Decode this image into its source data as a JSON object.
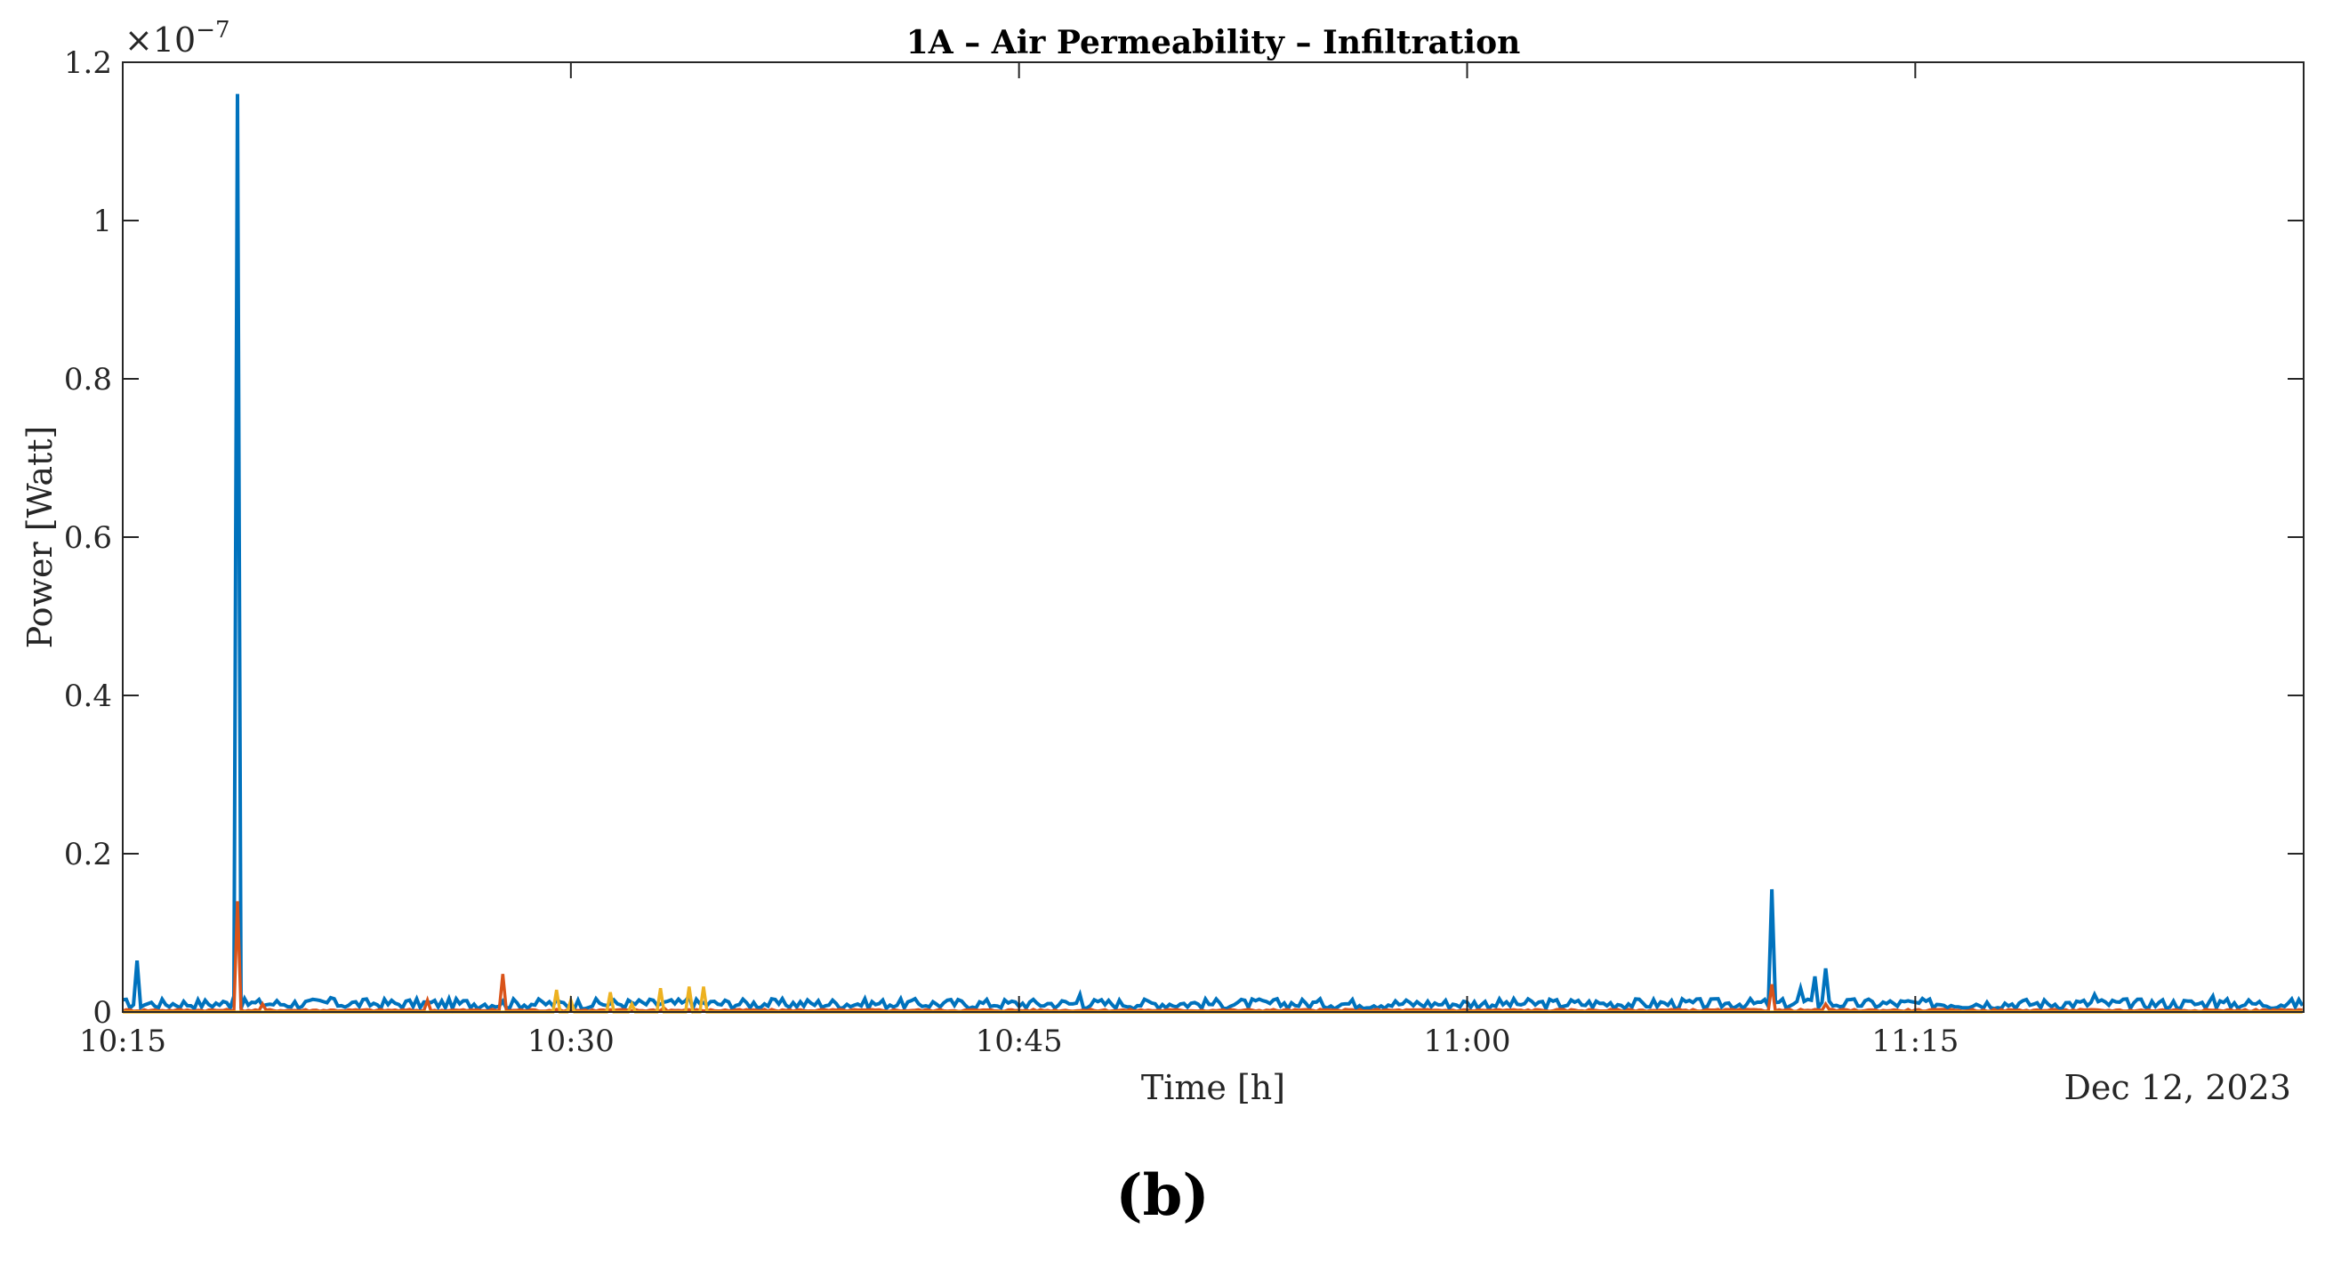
{
  "chart_data": {
    "type": "line",
    "title": "1A – Air Permeability – Infiltration",
    "xlabel": "Time [h]",
    "ylabel": "Power [Watt]",
    "y_multiplier": "×10",
    "y_exponent": "−7",
    "date_label": "Dec 12, 2023",
    "panel_label": "(b)",
    "xlim": [
      "10:15",
      "11:28"
    ],
    "ylim": [
      0,
      1.2
    ],
    "x_ticks": [
      "10:15",
      "10:30",
      "10:45",
      "11:00",
      "11:15"
    ],
    "y_ticks": [
      "0",
      "0.2",
      "0.4",
      "0.6",
      "0.8",
      "1",
      "1.2"
    ],
    "grid": false,
    "colors": [
      "#0072BD",
      "#D95319",
      "#EDB120"
    ],
    "series": [
      {
        "color": "#0072BD",
        "baseline": 0.01,
        "points": [
          {
            "x": "10:15:30",
            "y": 0.065
          },
          {
            "x": "10:18:40",
            "y": 0.02
          },
          {
            "x": "10:18:50",
            "y": 1.16
          },
          {
            "x": "10:22:00",
            "y": 0.018
          },
          {
            "x": "10:34:00",
            "y": 0.02
          },
          {
            "x": "10:47:00",
            "y": 0.022
          },
          {
            "x": "11:10:10",
            "y": 0.155
          },
          {
            "x": "11:11:10",
            "y": 0.03
          },
          {
            "x": "11:11:40",
            "y": 0.045
          },
          {
            "x": "11:12:00",
            "y": 0.055
          },
          {
            "x": "11:21:00",
            "y": 0.022
          },
          {
            "x": "11:25:00",
            "y": 0.02
          }
        ]
      },
      {
        "color": "#D95319",
        "baseline": 0.002,
        "points": [
          {
            "x": "10:18:50",
            "y": 0.14
          },
          {
            "x": "10:19:40",
            "y": 0.01
          },
          {
            "x": "10:25:15",
            "y": 0.015
          },
          {
            "x": "10:27:40",
            "y": 0.048
          },
          {
            "x": "10:33:10",
            "y": 0.005
          },
          {
            "x": "11:10:10",
            "y": 0.035
          },
          {
            "x": "11:12:00",
            "y": 0.01
          }
        ]
      },
      {
        "color": "#EDB120",
        "baseline": 0.0,
        "points": [
          {
            "x": "10:29:30",
            "y": 0.028
          },
          {
            "x": "10:30:00",
            "y": 0.015
          },
          {
            "x": "10:31:20",
            "y": 0.025
          },
          {
            "x": "10:32:00",
            "y": 0.01
          },
          {
            "x": "10:33:00",
            "y": 0.03
          },
          {
            "x": "10:34:00",
            "y": 0.032
          },
          {
            "x": "10:34:30",
            "y": 0.032
          }
        ]
      }
    ]
  }
}
